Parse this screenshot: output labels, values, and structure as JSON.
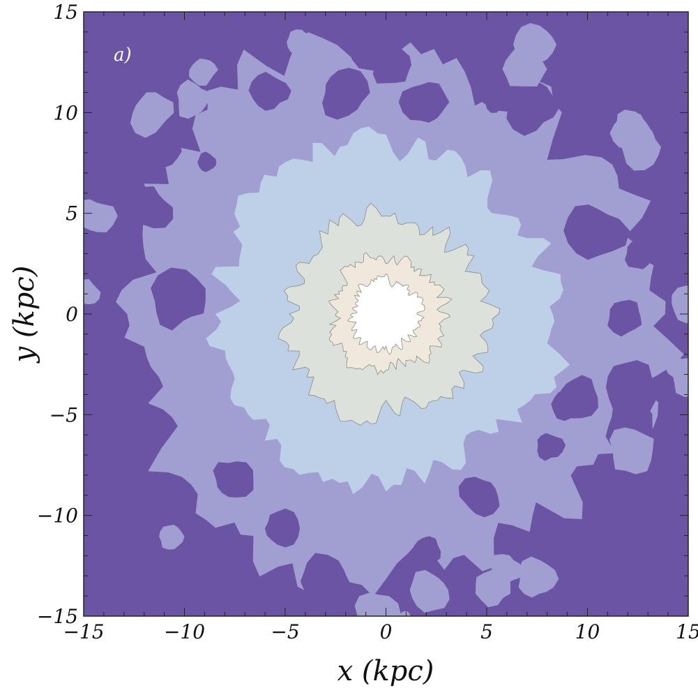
{
  "chart_data": {
    "type": "contour",
    "panel_label": "a)",
    "xlabel": "x  (kpc)",
    "ylabel": "y  (kpc)",
    "xlim": [
      -15,
      15
    ],
    "ylim": [
      -15,
      15
    ],
    "x_ticks": [
      -15,
      -10,
      -5,
      0,
      5,
      10,
      15
    ],
    "y_ticks": [
      -15,
      -10,
      -5,
      0,
      5,
      10,
      15
    ],
    "x_tick_labels": [
      "−15",
      "−10",
      "−5",
      "0",
      "5",
      "10",
      "15"
    ],
    "y_tick_labels": [
      "−15",
      "−10",
      "−5",
      "0",
      "5",
      "10",
      "15"
    ],
    "center": [
      0,
      0
    ],
    "grid": false,
    "levels": [
      {
        "level": 1,
        "color": "#6a54a3",
        "radius": null
      },
      {
        "level": 2,
        "color": "#a19fd1",
        "radius": 13.0
      },
      {
        "level": 3,
        "color": "#bed0e8",
        "radius": 8.4
      },
      {
        "level": 4,
        "color": "#dde1dc",
        "radius": 5.0
      },
      {
        "level": 5,
        "color": "#f0e8dc",
        "radius": 2.8
      },
      {
        "level": 6,
        "color": "#ffffff",
        "radius": 1.7
      }
    ]
  }
}
